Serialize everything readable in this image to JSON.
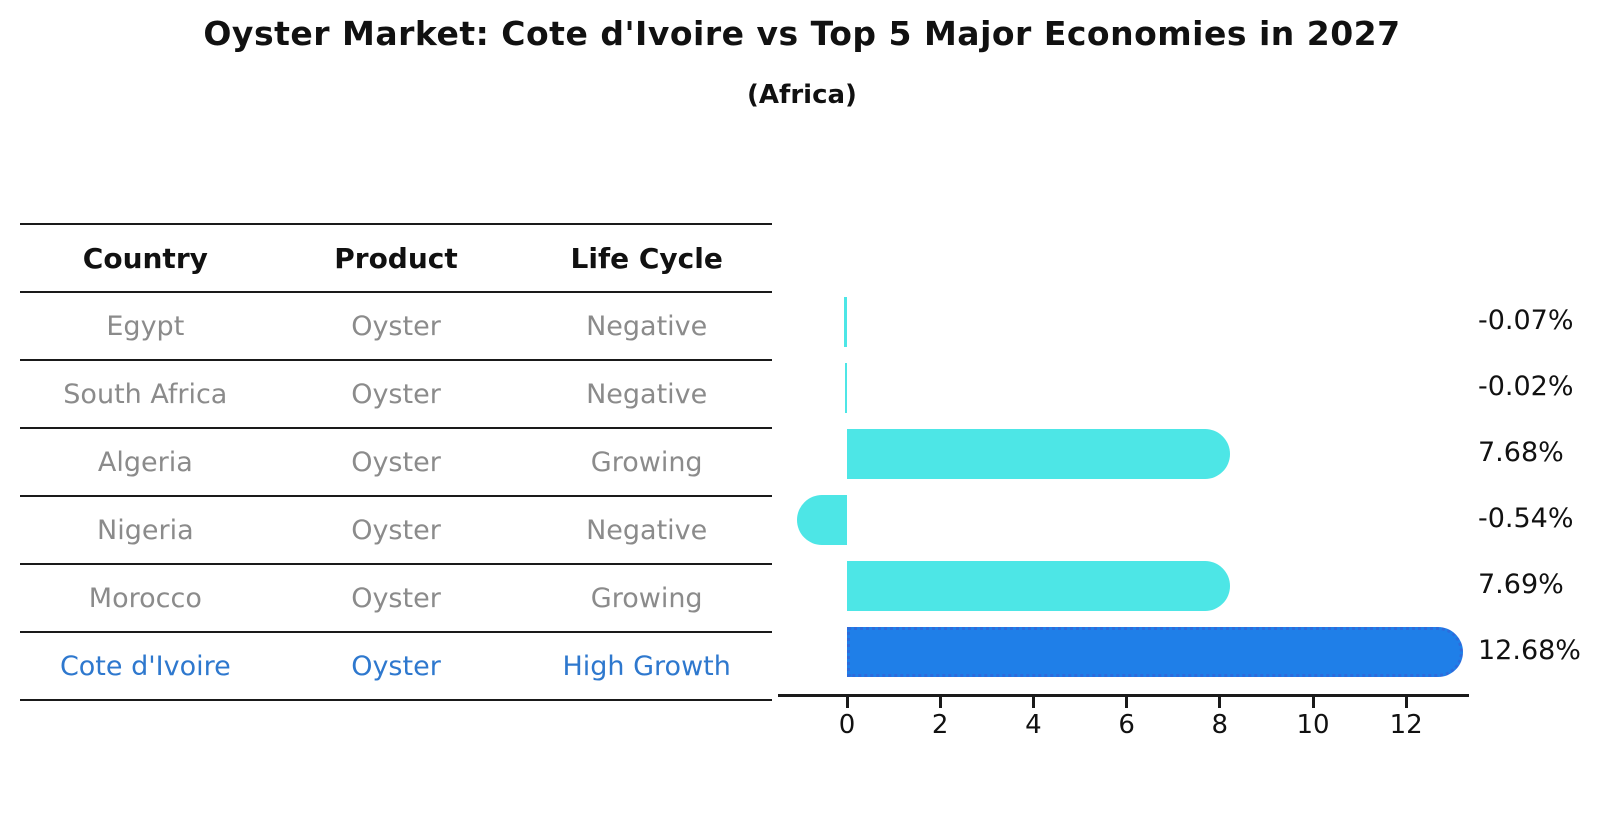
{
  "title": "Oyster Market: Cote d'Ivoire vs Top 5 Major Economies in 2027",
  "subtitle": "(Africa)",
  "table": {
    "headers": [
      "Country",
      "Product",
      "Life Cycle"
    ],
    "rows": [
      {
        "country": "Egypt",
        "product": "Oyster",
        "life_cycle": "Negative",
        "highlight": false
      },
      {
        "country": "South Africa",
        "product": "Oyster",
        "life_cycle": "Negative",
        "highlight": false
      },
      {
        "country": "Algeria",
        "product": "Oyster",
        "life_cycle": "Growing",
        "highlight": false
      },
      {
        "country": "Nigeria",
        "product": "Oyster",
        "life_cycle": "Negative",
        "highlight": false
      },
      {
        "country": "Morocco",
        "product": "Oyster",
        "life_cycle": "Growing",
        "highlight": false
      },
      {
        "country": "Cote d'Ivoire",
        "product": "Oyster",
        "life_cycle": "High Growth",
        "highlight": true
      }
    ]
  },
  "chart_data": {
    "type": "bar",
    "orientation": "horizontal",
    "title": "Oyster Market: Cote d'Ivoire vs Top 5 Major Economies in 2027",
    "subtitle": "(Africa)",
    "categories": [
      "Egypt",
      "South Africa",
      "Algeria",
      "Nigeria",
      "Morocco",
      "Cote d'Ivoire"
    ],
    "values": [
      -0.07,
      -0.02,
      7.68,
      -0.54,
      7.69,
      12.68
    ],
    "value_labels": [
      "-0.07%",
      "-0.02%",
      "7.68%",
      "-0.54%",
      "7.69%",
      "12.68%"
    ],
    "highlight_index": 5,
    "xticks": [
      0,
      2,
      4,
      6,
      8,
      10,
      12
    ],
    "xlim": [
      -1.5,
      13.3
    ],
    "xlabel": "",
    "ylabel": "",
    "grid": false,
    "legend": "none",
    "bar_color": "#4DE6E6",
    "highlight_color": "#1F7FE8",
    "highlight_border_color": "#2E6BDB",
    "highlight_text_color": "#2E78CE"
  }
}
